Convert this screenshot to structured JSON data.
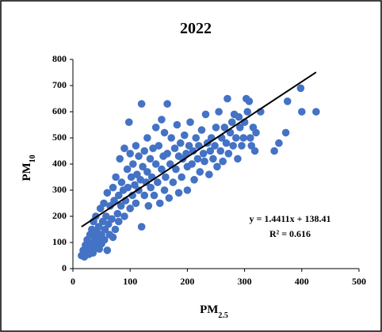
{
  "chart_data": {
    "type": "scatter",
    "title": "2022",
    "x_label": [
      "PM",
      "2.5"
    ],
    "y_label": [
      "PM",
      "10"
    ],
    "xlim": [
      0,
      500
    ],
    "xticks": [
      0,
      100,
      200,
      300,
      400,
      500
    ],
    "ylim": [
      0,
      800
    ],
    "yticks": [
      0,
      100,
      200,
      300,
      400,
      500,
      600,
      700,
      800
    ],
    "grid": false,
    "series": [
      {
        "color": "#4472c4",
        "x": [
          15,
          18,
          20,
          22,
          24,
          25,
          26,
          28,
          30,
          30,
          32,
          33,
          35,
          35,
          36,
          38,
          40,
          40,
          42,
          44,
          45,
          46,
          48,
          50,
          50,
          52,
          54,
          55,
          56,
          58,
          60,
          60,
          62,
          64,
          65,
          68,
          70,
          70,
          72,
          74,
          75,
          78,
          80,
          80,
          82,
          84,
          85,
          88,
          90,
          90,
          92,
          95,
          96,
          98,
          100,
          100,
          102,
          104,
          105,
          108,
          110,
          110,
          112,
          115,
          115,
          118,
          120,
          120,
          122,
          125,
          125,
          128,
          130,
          130,
          132,
          135,
          136,
          138,
          140,
          142,
          145,
          145,
          148,
          150,
          152,
          155,
          155,
          158,
          160,
          160,
          162,
          165,
          165,
          168,
          170,
          172,
          175,
          178,
          180,
          182,
          185,
          185,
          188,
          190,
          192,
          195,
          198,
          200,
          200,
          203,
          205,
          208,
          210,
          212,
          215,
          218,
          220,
          222,
          225,
          228,
          230,
          232,
          235,
          238,
          240,
          242,
          245,
          248,
          250,
          252,
          255,
          258,
          260,
          262,
          265,
          268,
          270,
          272,
          275,
          278,
          280,
          282,
          285,
          288,
          290,
          292,
          295,
          298,
          300,
          303,
          305,
          308,
          310,
          312,
          315,
          318,
          320,
          328,
          352,
          360,
          372,
          375,
          398,
          400,
          425
        ],
        "values": [
          50,
          70,
          45,
          90,
          60,
          110,
          80,
          55,
          130,
          95,
          70,
          150,
          100,
          60,
          180,
          120,
          85,
          200,
          140,
          110,
          160,
          75,
          230,
          130,
          95,
          180,
          250,
          110,
          150,
          200,
          70,
          290,
          170,
          130,
          240,
          190,
          310,
          120,
          260,
          150,
          350,
          210,
          280,
          180,
          420,
          240,
          330,
          300,
          460,
          200,
          260,
          380,
          310,
          560,
          230,
          440,
          350,
          280,
          400,
          320,
          250,
          470,
          360,
          300,
          430,
          340,
          630,
          160,
          390,
          280,
          450,
          330,
          370,
          500,
          240,
          420,
          310,
          350,
          460,
          280,
          400,
          540,
          330,
          470,
          250,
          570,
          380,
          430,
          300,
          520,
          350,
          630,
          440,
          270,
          400,
          500,
          330,
          460,
          380,
          550,
          290,
          430,
          480,
          350,
          420,
          510,
          440,
          390,
          300,
          470,
          560,
          400,
          450,
          340,
          500,
          420,
          470,
          370,
          530,
          440,
          410,
          590,
          480,
          360,
          450,
          500,
          420,
          470,
          540,
          390,
          600,
          450,
          500,
          410,
          540,
          480,
          650,
          440,
          520,
          560,
          470,
          590,
          500,
          420,
          580,
          540,
          470,
          500,
          560,
          650,
          600,
          640,
          500,
          470,
          540,
          450,
          520,
          600,
          450,
          480,
          520,
          640,
          690,
          600,
          600
        ]
      }
    ],
    "trendline": {
      "slope": 1.4411,
      "intercept": 138.41,
      "color": "#000000",
      "label": "y = 1.4411x + 138.41",
      "r2_label": "R² = 0.616"
    }
  }
}
